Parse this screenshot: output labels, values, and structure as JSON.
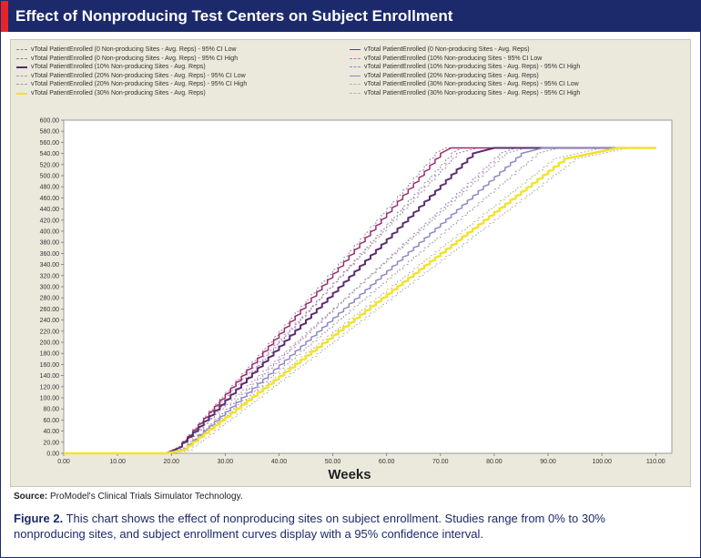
{
  "title": "Effect of Nonproducing Test Centers on Subject Enrollment",
  "colors": {
    "title_bg": "#1c2a6b",
    "accent": "#e4262c",
    "panel": "#ebe9dc"
  },
  "chart_data": {
    "type": "line",
    "xlabel": "Weeks",
    "ylabel": "",
    "xlim": [
      0,
      113
    ],
    "ylim": [
      0,
      600
    ],
    "x_ticks": [
      "0.00",
      "10.00",
      "20.00",
      "30.00",
      "40.00",
      "50.00",
      "60.00",
      "70.00",
      "80.00",
      "90.00",
      "100.00",
      "110.00"
    ],
    "y_ticks": [
      "0.00",
      "20.00",
      "40.00",
      "60.00",
      "80.00",
      "100.00",
      "120.00",
      "140.00",
      "160.00",
      "180.00",
      "200.00",
      "220.00",
      "240.00",
      "260.00",
      "280.00",
      "300.00",
      "320.00",
      "340.00",
      "360.00",
      "380.00",
      "400.00",
      "420.00",
      "440.00",
      "460.00",
      "480.00",
      "500.00",
      "520.00",
      "540.00",
      "560.00",
      "580.00",
      "600.00"
    ],
    "series": [
      {
        "name": "vTotal PatientEnrolled (0 Non-producing Sites - Avg. Reps) - 95% CI Low",
        "color": "#8a8a8a",
        "dash": "2,2",
        "width": 1,
        "x": [
          0,
          19,
          22,
          72,
          74
        ],
        "y": [
          0,
          0,
          8,
          540,
          550
        ]
      },
      {
        "name": "vTotal PatientEnrolled (0 Non-producing Sites - Avg. Reps)",
        "color": "#9c2a6e",
        "dash": "",
        "width": 1.5,
        "x": [
          0,
          19,
          21,
          70,
          72
        ],
        "y": [
          0,
          0,
          8,
          540,
          550
        ]
      },
      {
        "name": "vTotal PatientEnrolled (0 Non-producing Sites - Avg. Reps) - 95% CI High",
        "color": "#8a8a8a",
        "dash": "2,2",
        "width": 1,
        "x": [
          0,
          19,
          21,
          69,
          71
        ],
        "y": [
          0,
          0,
          10,
          540,
          550
        ]
      },
      {
        "name": "vTotal PatientEnrolled (10% Non-producing Sites - 95% CI Low",
        "color": "#b07ab8",
        "dash": "2,2",
        "width": 1,
        "x": [
          0,
          19,
          22,
          81,
          84
        ],
        "y": [
          0,
          0,
          6,
          540,
          550
        ]
      },
      {
        "name": "vTotal PatientEnrolled (10% Non-producing Sites - Avg. Reps)",
        "color": "#5a2d6e",
        "dash": "",
        "width": 2,
        "x": [
          0,
          19,
          21,
          76,
          80
        ],
        "y": [
          0,
          0,
          8,
          540,
          550
        ]
      },
      {
        "name": "vTotal PatientEnrolled (10% Non-producing Sites - Avg. Reps) - 95% CI High",
        "color": "#b07ab8",
        "dash": "2,2",
        "width": 1,
        "x": [
          0,
          19,
          21,
          73,
          77
        ],
        "y": [
          0,
          0,
          10,
          540,
          550
        ]
      },
      {
        "name": "vTotal PatientEnrolled (20% Non-producing Sites - Avg. Reps) - 95% CI Low",
        "color": "#a09aa8",
        "dash": "2,2",
        "width": 1,
        "x": [
          0,
          19,
          22,
          88,
          92
        ],
        "y": [
          0,
          0,
          5,
          540,
          550
        ]
      },
      {
        "name": "vTotal PatientEnrolled (20% Non-producing Sites - Avg. Reps)",
        "color": "#8e88c2",
        "dash": "",
        "width": 1.5,
        "x": [
          0,
          19,
          22,
          85,
          89
        ],
        "y": [
          0,
          0,
          6,
          540,
          550
        ]
      },
      {
        "name": "vTotal PatientEnrolled (20% Non-producing Sites - Avg. Reps) - 95% CI High",
        "color": "#a09aa8",
        "dash": "2,2",
        "width": 1,
        "x": [
          0,
          19,
          21,
          82,
          86
        ],
        "y": [
          0,
          0,
          8,
          540,
          550
        ]
      },
      {
        "name": "vTotal PatientEnrolled (30% Non-producing Sites - Avg. Reps) - 95% CI Low",
        "color": "#b6b6a0",
        "dash": "2,2",
        "width": 1,
        "x": [
          0,
          19,
          23,
          95,
          105
        ],
        "y": [
          0,
          0,
          4,
          530,
          550
        ]
      },
      {
        "name": "vTotal PatientEnrolled (30% Non-producing Sites - Avg. Reps)",
        "color": "#f2e22c",
        "dash": "",
        "width": 2.5,
        "x": [
          0,
          19,
          22,
          93,
          103
        ],
        "y": [
          0,
          0,
          5,
          530,
          550
        ]
      },
      {
        "name": "vTotal PatientEnrolled (30% Non-producing Sites - Avg. Reps) - 95% CI High",
        "color": "#b6b6a0",
        "dash": "2,2",
        "width": 1,
        "x": [
          0,
          19,
          22,
          91,
          100
        ],
        "y": [
          0,
          0,
          6,
          530,
          550
        ]
      }
    ],
    "plateau_end_x": 110
  },
  "source_label": "Source:",
  "source_text": " ProModel's Clinical Trials Simulator Technology.",
  "caption_fig": "Figure 2.",
  "caption_text": " This chart shows the effect of nonproducing sites on subject enrollment. Studies range from 0% to 30% nonproducing sites, and subject enrollment curves display with a 95% confidence interval."
}
